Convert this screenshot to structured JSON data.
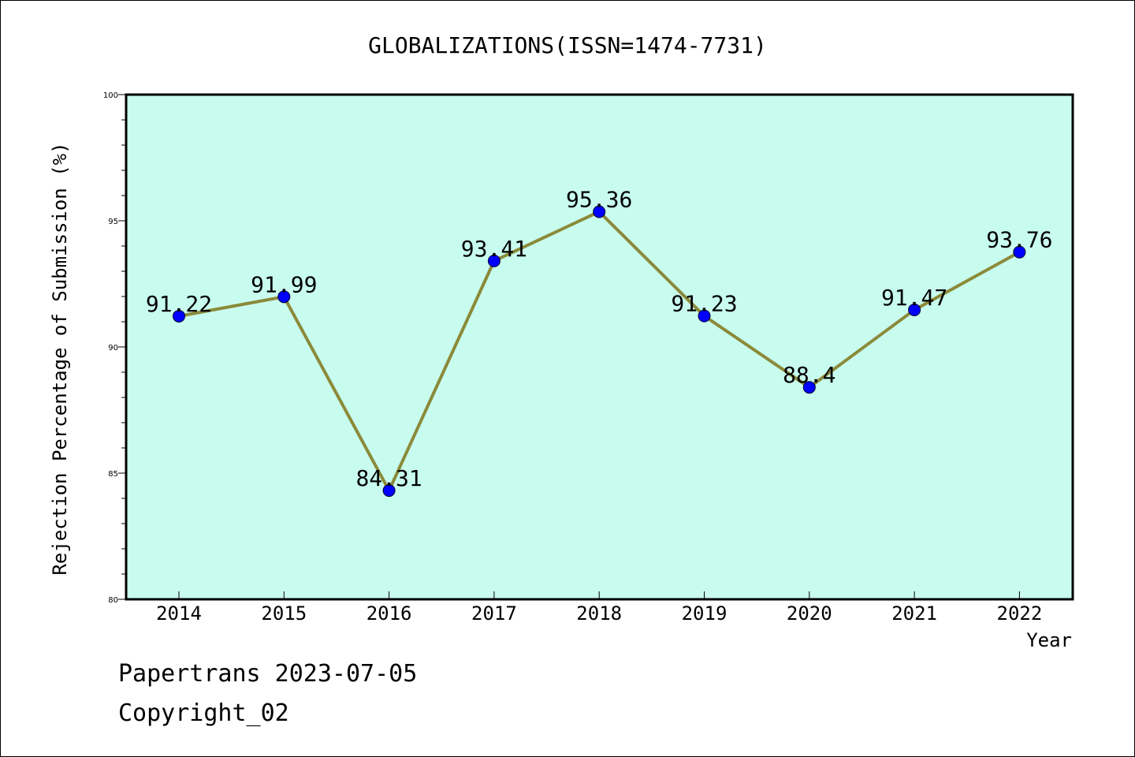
{
  "chart_data": {
    "type": "line",
    "title": "GLOBALIZATIONS(ISSN=1474-7731)",
    "xlabel": "Year",
    "ylabel": "Rejection Percentage of Submission (%)",
    "categories": [
      "2014",
      "2015",
      "2016",
      "2017",
      "2018",
      "2019",
      "2020",
      "2021",
      "2022"
    ],
    "series": [
      {
        "values": [
          91.22,
          91.99,
          84.31,
          93.41,
          95.36,
          91.23,
          88.4,
          91.47,
          93.76
        ],
        "labels": [
          "91.22",
          "91.99",
          "84.31",
          "93.41",
          "95.36",
          "91.23",
          "88.4",
          "91.47",
          "93.76"
        ]
      }
    ],
    "ylim": [
      80,
      100
    ],
    "yticks": [
      80,
      85,
      90,
      95,
      100
    ],
    "grid": false,
    "plot_background": "#c8fcee",
    "line_color": "#8b8a3a",
    "marker_color": "#0000ff"
  },
  "footer": {
    "line1": "Papertrans 2023-07-05",
    "line2": "Copyright_02"
  }
}
